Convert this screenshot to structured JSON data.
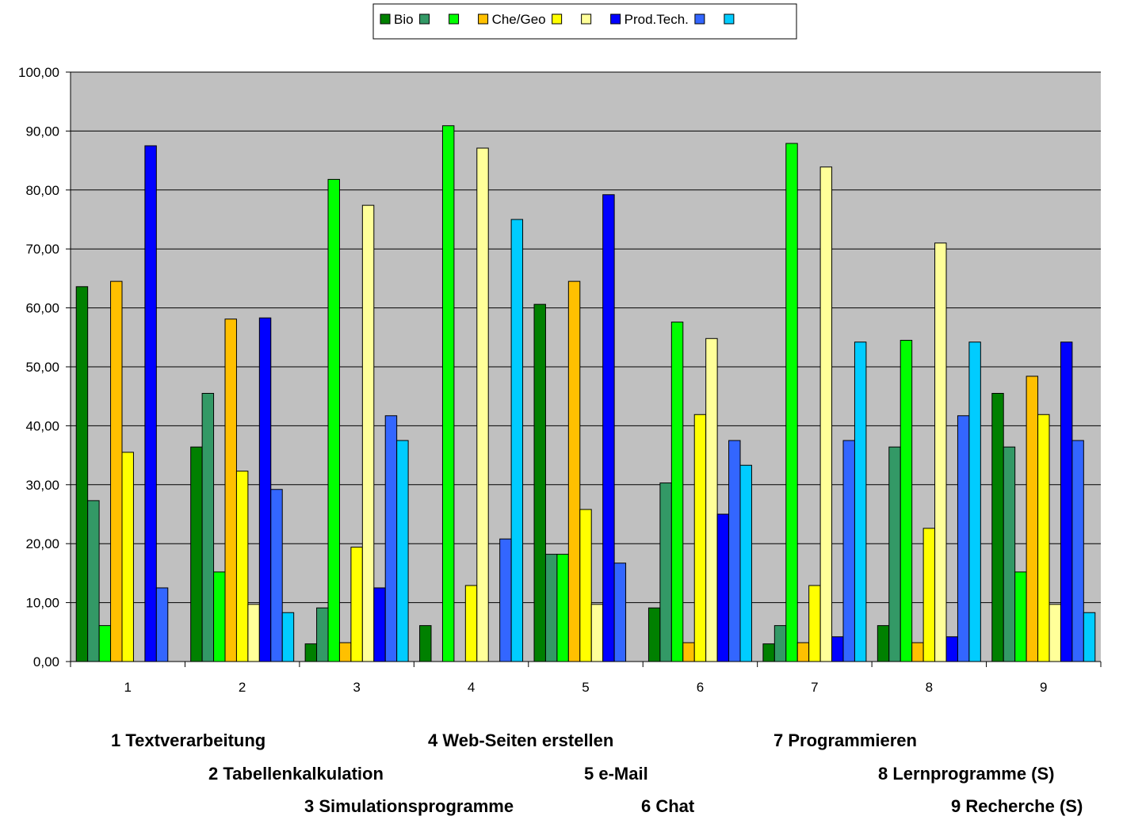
{
  "chart_data": {
    "type": "bar",
    "categories": [
      "1",
      "2",
      "3",
      "4",
      "5",
      "6",
      "7",
      "8",
      "9"
    ],
    "y_ticks": [
      "0,00",
      "10,00",
      "20,00",
      "30,00",
      "40,00",
      "50,00",
      "60,00",
      "70,00",
      "80,00",
      "90,00",
      "100,00"
    ],
    "ylim": [
      0,
      100
    ],
    "grid": true,
    "plot_background": "#c0c0c0",
    "legend_position": "top-center",
    "series": [
      {
        "name": "Bio",
        "color": "#008000",
        "values": [
          63.6,
          36.4,
          3.0,
          6.1,
          60.6,
          9.1,
          3.0,
          6.1,
          45.5
        ]
      },
      {
        "name": "",
        "color": "#339966",
        "values": [
          27.3,
          45.5,
          9.1,
          0,
          18.2,
          30.3,
          6.1,
          36.4,
          36.4
        ]
      },
      {
        "name": "",
        "color": "#00ff00",
        "values": [
          6.1,
          15.2,
          81.8,
          90.9,
          18.2,
          57.6,
          87.9,
          54.5,
          15.2
        ]
      },
      {
        "name": "Che/Geo",
        "color": "#ffc000",
        "values": [
          64.5,
          58.1,
          3.2,
          0,
          64.5,
          3.2,
          3.2,
          3.2,
          48.4
        ]
      },
      {
        "name": "",
        "color": "#ffff00",
        "values": [
          35.5,
          32.3,
          19.4,
          12.9,
          25.8,
          41.9,
          12.9,
          22.6,
          41.9
        ]
      },
      {
        "name": "",
        "color": "#ffff99",
        "values": [
          0,
          9.7,
          77.4,
          87.1,
          9.7,
          54.8,
          83.9,
          71.0,
          9.7
        ]
      },
      {
        "name": "Prod.Tech.",
        "color": "#0000ff",
        "values": [
          87.5,
          58.3,
          12.5,
          0,
          79.2,
          25.0,
          4.2,
          4.2,
          54.2
        ]
      },
      {
        "name": "",
        "color": "#3366ff",
        "values": [
          12.5,
          29.2,
          41.7,
          20.8,
          16.7,
          37.5,
          37.5,
          41.7,
          37.5
        ]
      },
      {
        "name": "",
        "color": "#00ccff",
        "values": [
          0,
          8.3,
          37.5,
          75.0,
          0,
          33.3,
          54.2,
          54.2,
          8.3
        ]
      }
    ]
  },
  "footnotes": {
    "n1": "1  Textverarbeitung",
    "n2": "2  Tabellenkalkulation",
    "n3": "3  Simulationsprogramme",
    "n4": "4  Web-Seiten erstellen",
    "n5": "5  e-Mail",
    "n6": "6 Chat",
    "n7": "7 Programmieren",
    "n8": "8  Lernprogramme (S)",
    "n9": "9 Recherche (S)"
  }
}
